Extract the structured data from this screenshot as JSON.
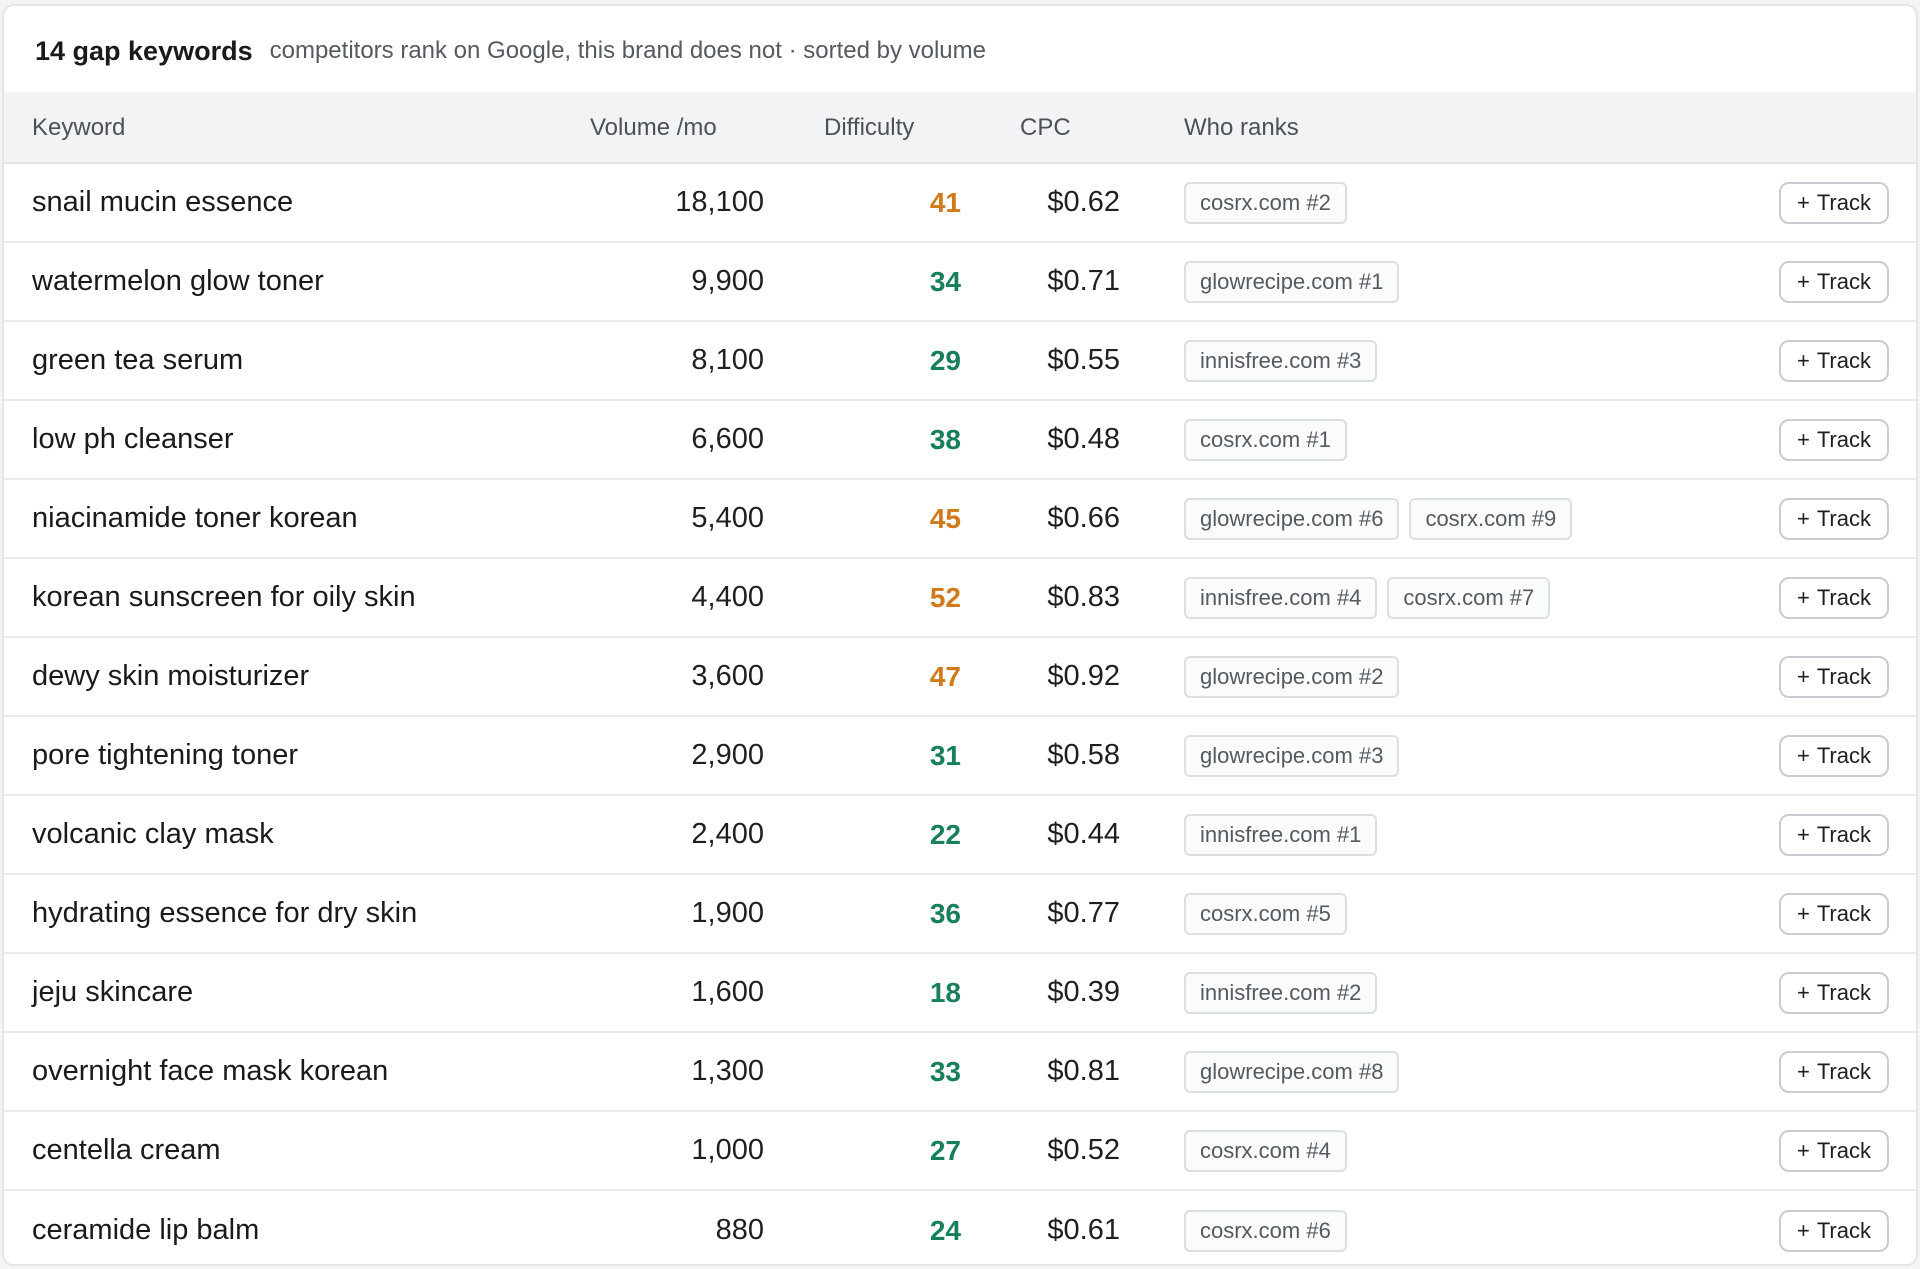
{
  "header": {
    "title": "14 gap keywords",
    "subtitle": "competitors rank on Google, this brand does not · sorted by volume"
  },
  "columns": {
    "keyword": "Keyword",
    "volume": "Volume /mo",
    "difficulty": "Difficulty",
    "cpc": "CPC",
    "who_ranks": "Who ranks"
  },
  "track_label": "Track",
  "plus_glyph": "+",
  "difficulty_colors": {
    "medium": "#d17a1a",
    "low": "#17805a"
  },
  "rows": [
    {
      "keyword": "snail mucin essence",
      "volume": "18,100",
      "difficulty": "41",
      "level": "med",
      "cpc": "$0.62",
      "ranks": [
        "cosrx.com #2"
      ]
    },
    {
      "keyword": "watermelon glow toner",
      "volume": "9,900",
      "difficulty": "34",
      "level": "low",
      "cpc": "$0.71",
      "ranks": [
        "glowrecipe.com #1"
      ]
    },
    {
      "keyword": "green tea serum",
      "volume": "8,100",
      "difficulty": "29",
      "level": "low",
      "cpc": "$0.55",
      "ranks": [
        "innisfree.com #3"
      ]
    },
    {
      "keyword": "low ph cleanser",
      "volume": "6,600",
      "difficulty": "38",
      "level": "low",
      "cpc": "$0.48",
      "ranks": [
        "cosrx.com #1"
      ]
    },
    {
      "keyword": "niacinamide toner korean",
      "volume": "5,400",
      "difficulty": "45",
      "level": "med",
      "cpc": "$0.66",
      "ranks": [
        "glowrecipe.com #6",
        "cosrx.com #9"
      ]
    },
    {
      "keyword": "korean sunscreen for oily skin",
      "volume": "4,400",
      "difficulty": "52",
      "level": "med",
      "cpc": "$0.83",
      "ranks": [
        "innisfree.com #4",
        "cosrx.com #7"
      ]
    },
    {
      "keyword": "dewy skin moisturizer",
      "volume": "3,600",
      "difficulty": "47",
      "level": "med",
      "cpc": "$0.92",
      "ranks": [
        "glowrecipe.com #2"
      ]
    },
    {
      "keyword": "pore tightening toner",
      "volume": "2,900",
      "difficulty": "31",
      "level": "low",
      "cpc": "$0.58",
      "ranks": [
        "glowrecipe.com #3"
      ]
    },
    {
      "keyword": "volcanic clay mask",
      "volume": "2,400",
      "difficulty": "22",
      "level": "low",
      "cpc": "$0.44",
      "ranks": [
        "innisfree.com #1"
      ]
    },
    {
      "keyword": "hydrating essence for dry skin",
      "volume": "1,900",
      "difficulty": "36",
      "level": "low",
      "cpc": "$0.77",
      "ranks": [
        "cosrx.com #5"
      ]
    },
    {
      "keyword": "jeju skincare",
      "volume": "1,600",
      "difficulty": "18",
      "level": "low",
      "cpc": "$0.39",
      "ranks": [
        "innisfree.com #2"
      ]
    },
    {
      "keyword": "overnight face mask korean",
      "volume": "1,300",
      "difficulty": "33",
      "level": "low",
      "cpc": "$0.81",
      "ranks": [
        "glowrecipe.com #8"
      ]
    },
    {
      "keyword": "centella cream",
      "volume": "1,000",
      "difficulty": "27",
      "level": "low",
      "cpc": "$0.52",
      "ranks": [
        "cosrx.com #4"
      ]
    },
    {
      "keyword": "ceramide lip balm",
      "volume": "880",
      "difficulty": "24",
      "level": "low",
      "cpc": "$0.61",
      "ranks": [
        "cosrx.com #6"
      ]
    }
  ]
}
